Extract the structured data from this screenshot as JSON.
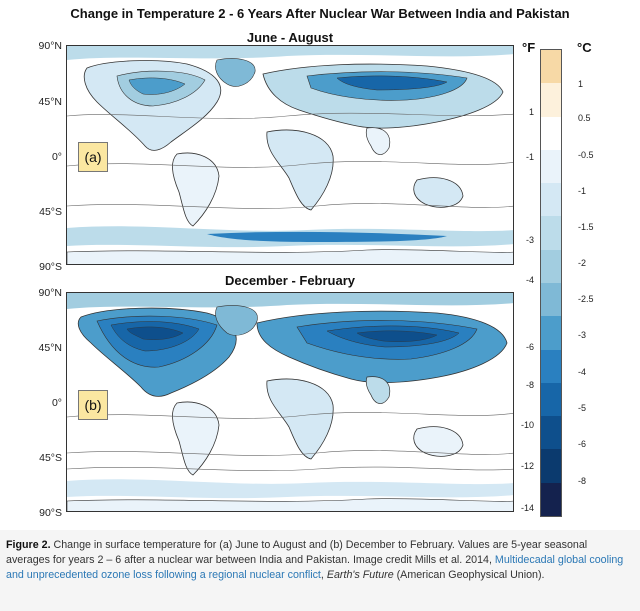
{
  "title": "Change in Temperature  2 - 6 Years After Nuclear War Between India and Pakistan",
  "panels": [
    {
      "title": "June - August",
      "label": "(a)"
    },
    {
      "title": "December - February",
      "label": "(b)"
    }
  ],
  "lat_labels": [
    "90°N",
    "45°N",
    "0°",
    "45°S",
    "90°S"
  ],
  "colorbar": {
    "f_unit": "°F",
    "c_unit": "°C",
    "f_labels": [
      "1",
      "-1",
      "-3",
      "-4",
      "-6",
      "-8",
      "-10",
      "-12",
      "-14"
    ],
    "c_labels": [
      "1",
      "0.5",
      "-0.5",
      "-1",
      "-1.5",
      "-2",
      "-2.5",
      "-3",
      "-4",
      "-5",
      "-6",
      "-8"
    ],
    "colors": [
      "#f7d9a6",
      "#fdf1dc",
      "#ffffff",
      "#eaf3fa",
      "#d4e8f4",
      "#bcdcea",
      "#a2cde0",
      "#7fb9d6",
      "#4c9dcb",
      "#2a80c0",
      "#1766a8",
      "#0e4f8c",
      "#0b3a6e",
      "#14224e"
    ]
  },
  "caption": {
    "fig": "Figure 2.",
    "text1": " Change in surface temperature for (a) June to August and (b) December to February. Values are 5-year seasonal averages for years 2 – 6 after a nuclear war between India and Pakistan. Image credit Mills et al. 2014, ",
    "link": "Multidecadal global cooling and unprecedented ozone loss following a regional nuclear conflict",
    "text2": ", ",
    "journal": "Earth's Future",
    "text3": " (American Geophysical Union)."
  }
}
